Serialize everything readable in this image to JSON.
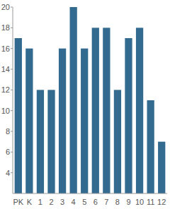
{
  "chart_data": {
    "type": "bar",
    "categories": [
      "PK",
      "K",
      "1",
      "2",
      "3",
      "4",
      "5",
      "6",
      "7",
      "8",
      "9",
      "10",
      "11",
      "12"
    ],
    "values": [
      17,
      16,
      12,
      12,
      16,
      20,
      16,
      18,
      18,
      12,
      17,
      18,
      11,
      7
    ],
    "color": "#336a90",
    "ylim": [
      2,
      20
    ],
    "yticks": [
      4,
      6,
      8,
      10,
      12,
      14,
      16,
      18,
      20
    ],
    "grid": false
  }
}
